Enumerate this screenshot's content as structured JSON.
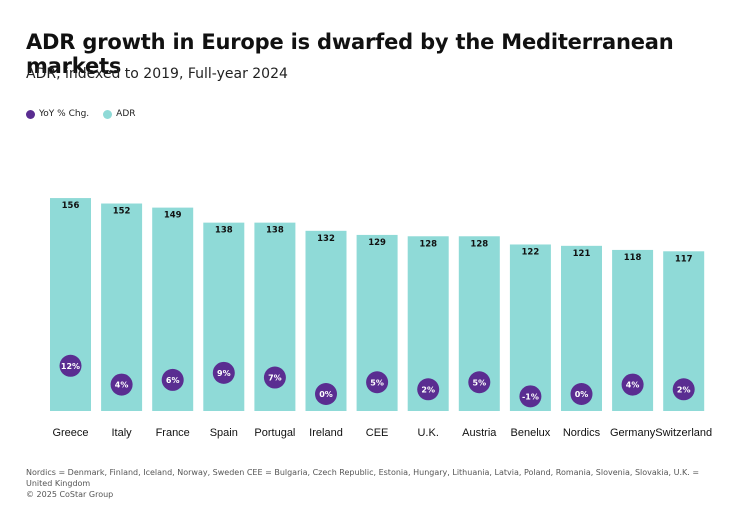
{
  "title": "ADR growth in Europe is dwarfed by the Mediterranean markets",
  "subtitle": "ADR, indexed to 2019, Full-year 2024",
  "legend": [
    {
      "label": "YoY % Chg.",
      "color": "#5a2d91"
    },
    {
      "label": "ADR",
      "color": "#8fdad7"
    }
  ],
  "chart_data": {
    "type": "bar",
    "categories": [
      "Greece",
      "Italy",
      "France",
      "Spain",
      "Portugal",
      "Ireland",
      "CEE",
      "U.K.",
      "Austria",
      "Benelux",
      "Nordics",
      "Germany",
      "Switzerland"
    ],
    "series": [
      {
        "name": "ADR",
        "values": [
          156,
          152,
          149,
          138,
          138,
          132,
          129,
          128,
          128,
          122,
          121,
          118,
          117
        ],
        "labels": [
          "156",
          "152",
          "149",
          "138",
          "138",
          "132",
          "129",
          "128",
          "128",
          "122",
          "121",
          "118",
          "117"
        ],
        "color": "#8fdad7"
      },
      {
        "name": "YoY % Chg.",
        "values": [
          12,
          4,
          6,
          9,
          7,
          0,
          5,
          2,
          5,
          -1,
          0,
          4,
          2
        ],
        "labels": [
          "12%",
          "4%",
          "6%",
          "9%",
          "7%",
          "0%",
          "5%",
          "2%",
          "5%",
          "-1%",
          "0%",
          "4%",
          "2%"
        ],
        "color": "#5a2d91"
      }
    ],
    "ylim": [
      0,
      160
    ],
    "grid": false,
    "legend_position": "top-left"
  },
  "footnote": "Nordics = Denmark, Finland, Iceland, Norway, Sweden CEE = Bulgaria, Czech Republic, Estonia, Hungary, Lithuania, Latvia, Poland, Romania, Slovenia, Slovakia, U.K. = United Kingdom",
  "copyright": "© 2025 CoStar Group"
}
